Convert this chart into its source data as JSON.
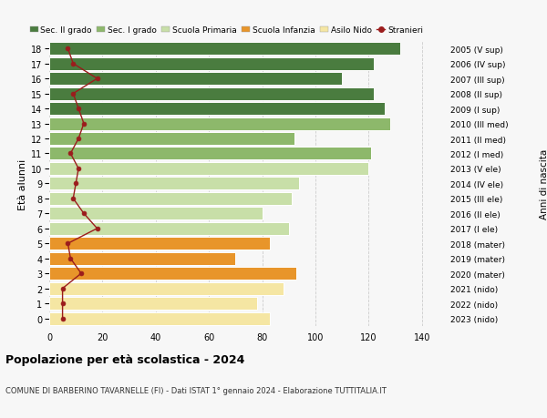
{
  "ages": [
    0,
    1,
    2,
    3,
    4,
    5,
    6,
    7,
    8,
    9,
    10,
    11,
    12,
    13,
    14,
    15,
    16,
    17,
    18
  ],
  "bar_values": [
    83,
    78,
    88,
    93,
    70,
    83,
    90,
    80,
    91,
    94,
    120,
    121,
    92,
    128,
    126,
    122,
    110,
    122,
    132
  ],
  "bar_colors": [
    "#f5e6a3",
    "#f5e6a3",
    "#f5e6a3",
    "#e8952a",
    "#e8952a",
    "#e8952a",
    "#c8dfa8",
    "#c8dfa8",
    "#c8dfa8",
    "#c8dfa8",
    "#c8dfa8",
    "#8db86b",
    "#8db86b",
    "#8db86b",
    "#4a7c3f",
    "#4a7c3f",
    "#4a7c3f",
    "#4a7c3f",
    "#4a7c3f"
  ],
  "stranieri_values": [
    5,
    5,
    5,
    12,
    8,
    7,
    18,
    13,
    9,
    10,
    11,
    8,
    11,
    13,
    11,
    9,
    18,
    9,
    7
  ],
  "right_labels": [
    "2023 (nido)",
    "2022 (nido)",
    "2021 (nido)",
    "2020 (mater)",
    "2019 (mater)",
    "2018 (mater)",
    "2017 (I ele)",
    "2016 (II ele)",
    "2015 (III ele)",
    "2014 (IV ele)",
    "2013 (V ele)",
    "2012 (I med)",
    "2011 (II med)",
    "2010 (III med)",
    "2009 (I sup)",
    "2008 (II sup)",
    "2007 (III sup)",
    "2006 (IV sup)",
    "2005 (V sup)"
  ],
  "ylabel_left": "Età alunni",
  "ylabel_right": "Anni di nascita",
  "title_bold": "Popolazione per età scolastica - 2024",
  "subtitle": "COMUNE DI BARBERINO TAVARNELLE (FI) - Dati ISTAT 1° gennaio 2024 - Elaborazione TUTTITALIA.IT",
  "xlim": [
    0,
    148
  ],
  "xticks": [
    0,
    20,
    40,
    60,
    80,
    100,
    120,
    140
  ],
  "legend_labels": [
    "Sec. II grado",
    "Sec. I grado",
    "Scuola Primaria",
    "Scuola Infanzia",
    "Asilo Nido",
    "Stranieri"
  ],
  "legend_colors": [
    "#4a7c3f",
    "#8db86b",
    "#c8dfa8",
    "#e8952a",
    "#f5e6a3",
    "#9b1c1c"
  ],
  "background_color": "#f7f7f7",
  "bar_edge_color": "white",
  "grid_color": "#cccccc",
  "stranieri_line_color": "#9b1c1c",
  "stranieri_dot_color": "#9b1c1c"
}
